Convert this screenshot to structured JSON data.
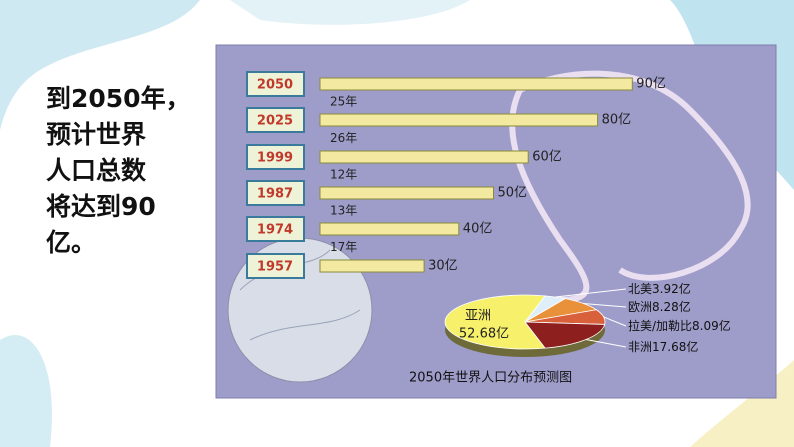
{
  "slide": {
    "text_lines": [
      "到2050年，",
      "预计世界",
      "人口总数",
      "将达到90",
      "亿。"
    ]
  },
  "chart_data": [
    {
      "type": "bar",
      "orientation": "horizontal",
      "categories": [
        "2050",
        "2025",
        "1999",
        "1987",
        "1974",
        "1957"
      ],
      "values": [
        90,
        80,
        60,
        50,
        40,
        30
      ],
      "value_labels": [
        "90亿",
        "80亿",
        "60亿",
        "50亿",
        "40亿",
        "30亿"
      ],
      "intervals": [
        "25年",
        "26年",
        "12年",
        "13年",
        "17年"
      ],
      "color": "#f3e9a0"
    },
    {
      "type": "pie",
      "title": "2050年世界人口分布预测图",
      "categories": [
        "亚洲",
        "北美",
        "欧洲",
        "拉美/加勒比",
        "非洲"
      ],
      "values": [
        52.68,
        3.92,
        8.28,
        8.09,
        17.68
      ],
      "value_labels": [
        "52.68亿",
        "3.92亿",
        "8.28亿",
        "8.09亿",
        "17.68亿"
      ],
      "colors": [
        "#f7f06a",
        "#dfeffa",
        "#e9913a",
        "#d8603a",
        "#8e1f1f"
      ]
    }
  ]
}
